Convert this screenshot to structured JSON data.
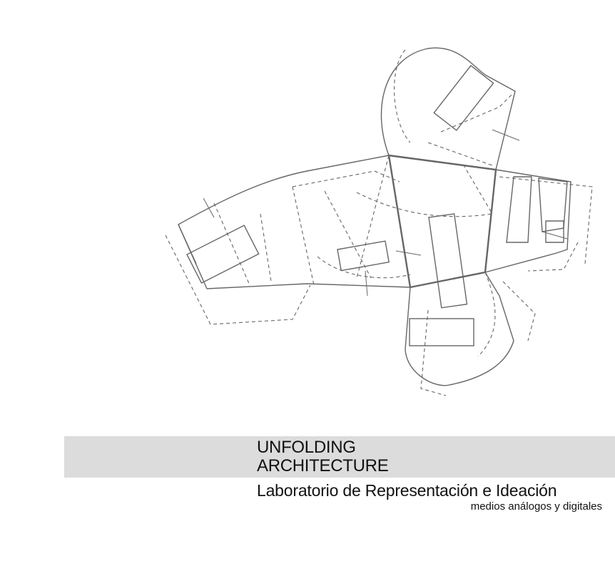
{
  "drawing": {
    "description_icon": "unfolded-plan-drawing",
    "stroke_color": "#666666"
  },
  "header": {
    "title_line1": "UNFOLDING",
    "title_line2": "ARCHITECTURE",
    "subtitle": "Laboratorio de Representación e Ideación",
    "tagline": "medios análogos y digitales",
    "band_color": "#dcdcdc"
  }
}
